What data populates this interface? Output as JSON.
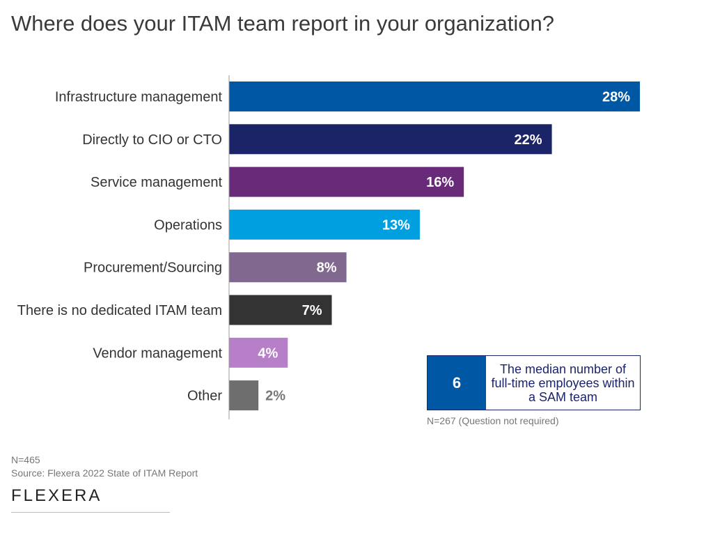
{
  "title": "Where does your ITAM team report in your organization?",
  "chart_data": {
    "type": "bar",
    "orientation": "horizontal",
    "title": "Where does your ITAM team report in your organization?",
    "categories": [
      "Infrastructure management",
      "Directly to CIO or CTO",
      "Service management",
      "Operations",
      "Procurement/Sourcing",
      "There is no dedicated ITAM team",
      "Vendor management",
      "Other"
    ],
    "values": [
      28,
      22,
      16,
      13,
      8,
      7,
      4,
      2
    ],
    "labels": [
      "28%",
      "22%",
      "16%",
      "13%",
      "8%",
      "7%",
      "4%",
      "2%"
    ],
    "colors": [
      "#0057a3",
      "#1b2466",
      "#6a2a7a",
      "#00a0e0",
      "#80688f",
      "#333333",
      "#b67fc8",
      "#6e6e6e"
    ],
    "xlim": [
      0,
      28
    ],
    "xlabel": "",
    "ylabel": ""
  },
  "callout": {
    "value": "6",
    "text": "The median number of full-time employees within a SAM team",
    "note": "N=267 (Question not required)"
  },
  "footer": {
    "n": "N=465",
    "source": "Source: Flexera 2022 State of ITAM Report",
    "logo": "FLEXERA"
  }
}
